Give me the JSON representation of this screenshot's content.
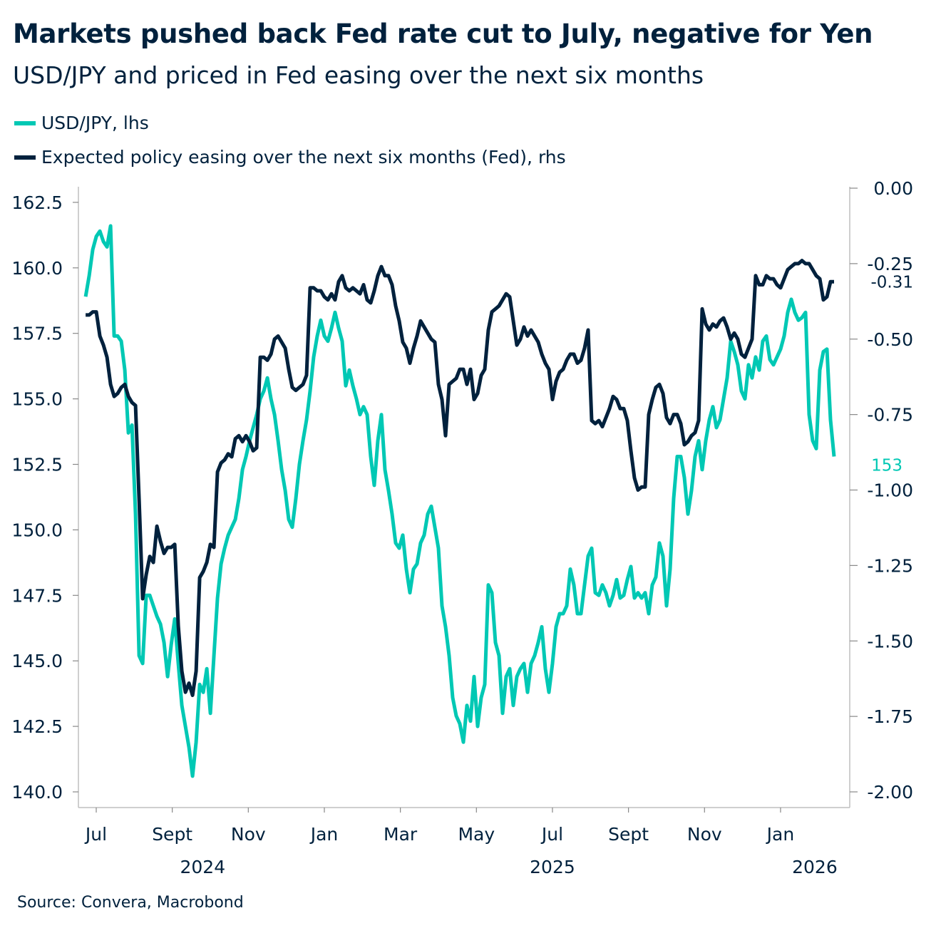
{
  "chart_data": {
    "type": "line",
    "title": "Markets pushed back Fed rate cut to July, negative for Yen",
    "subtitle": "USD/JPY and priced in Fed easing over the next six months",
    "source": "Source: Convera, Macrobond",
    "colors": {
      "usdjpy": "#00c8b4",
      "fed": "#00213d",
      "axis": "#bfbfbf"
    },
    "x_axis": {
      "unit": "months since Jul 2024",
      "range": [
        -0.45,
        19.55
      ],
      "ticks": [
        {
          "m": 0,
          "label": "Jul"
        },
        {
          "m": 2,
          "label": "Sept"
        },
        {
          "m": 4,
          "label": "Nov"
        },
        {
          "m": 6,
          "label": "Jan"
        },
        {
          "m": 8,
          "label": "Mar"
        },
        {
          "m": 10,
          "label": "May"
        },
        {
          "m": 12,
          "label": "Jul"
        },
        {
          "m": 14,
          "label": "Sept"
        },
        {
          "m": 16,
          "label": "Nov"
        },
        {
          "m": 18,
          "label": "Jan"
        }
      ],
      "years": [
        {
          "m": 2.8,
          "label": "2024"
        },
        {
          "m": 12,
          "label": "2025"
        },
        {
          "m": 18.9,
          "label": "2026"
        }
      ]
    },
    "y_left": {
      "label": "lhs",
      "range": [
        139.4,
        163.0
      ],
      "ticks": [
        "140.0",
        "142.5",
        "145.0",
        "147.5",
        "150.0",
        "152.5",
        "155.0",
        "157.5",
        "160.0",
        "162.5"
      ]
    },
    "y_right": {
      "label": "rhs",
      "range": [
        -2.05,
        0.0
      ],
      "ticks": [
        "0.00",
        "-0.25",
        "-0.50",
        "-0.75",
        "-1.00",
        "-1.25",
        "-1.50",
        "-1.75",
        "-2.00"
      ]
    },
    "x_start_month": -0.28,
    "x_step_month": 0.09375,
    "series": [
      {
        "name": "USD/JPY, lhs",
        "axis": "left",
        "last_label": "153",
        "values": [
          158.9,
          159.7,
          160.7,
          161.2,
          161.4,
          161.0,
          160.8,
          161.6,
          157.4,
          157.4,
          157.2,
          156.1,
          153.7,
          154.0,
          150.6,
          145.2,
          144.9,
          147.5,
          147.5,
          147.1,
          146.7,
          146.4,
          145.7,
          144.4,
          145.6,
          146.6,
          144.9,
          143.3,
          142.5,
          141.7,
          140.6,
          141.9,
          144.1,
          143.8,
          144.7,
          143.0,
          145.2,
          147.4,
          148.7,
          149.3,
          149.8,
          150.1,
          150.4,
          151.2,
          152.3,
          152.8,
          153.4,
          153.9,
          154.4,
          155.0,
          155.3,
          155.8,
          155.0,
          154.4,
          153.4,
          152.3,
          151.5,
          150.4,
          150.1,
          151.2,
          152.5,
          153.4,
          154.2,
          155.3,
          156.6,
          157.4,
          158.0,
          157.4,
          157.2,
          157.7,
          158.3,
          157.7,
          157.2,
          155.5,
          156.1,
          155.5,
          155.0,
          154.4,
          154.7,
          154.4,
          152.8,
          151.7,
          153.4,
          154.4,
          152.3,
          151.5,
          150.6,
          149.5,
          149.3,
          149.8,
          148.5,
          147.6,
          148.5,
          148.7,
          149.5,
          149.8,
          150.6,
          150.9,
          150.1,
          149.3,
          147.1,
          146.3,
          145.2,
          143.6,
          142.9,
          142.6,
          141.9,
          143.3,
          142.7,
          144.4,
          142.5,
          143.6,
          144.1,
          147.9,
          147.6,
          145.7,
          145.2,
          143.0,
          144.4,
          144.7,
          143.3,
          144.4,
          144.7,
          144.9,
          143.8,
          144.9,
          145.2,
          145.7,
          146.3,
          144.7,
          143.8,
          144.9,
          146.3,
          146.8,
          146.8,
          147.1,
          148.5,
          147.9,
          146.8,
          146.8,
          147.9,
          149.0,
          149.3,
          147.6,
          147.5,
          147.9,
          147.6,
          147.1,
          147.5,
          148.1,
          147.4,
          147.5,
          148.1,
          148.6,
          147.4,
          147.6,
          147.4,
          147.6,
          146.8,
          147.9,
          148.2,
          149.5,
          149.0,
          147.1,
          148.5,
          151.2,
          152.8,
          152.8,
          152.0,
          150.6,
          151.5,
          152.8,
          153.4,
          152.3,
          153.4,
          154.2,
          154.7,
          153.9,
          154.2,
          155.0,
          155.8,
          157.2,
          156.8,
          156.3,
          155.3,
          155.0,
          156.3,
          155.8,
          156.6,
          156.1,
          157.2,
          157.4,
          156.5,
          156.3,
          156.6,
          156.9,
          157.4,
          158.3,
          158.8,
          158.3,
          158.0,
          158.1,
          158.3,
          154.4,
          153.4,
          153.1,
          156.1,
          156.8,
          156.9,
          154.2,
          152.8
        ]
      },
      {
        "name": "Expected policy easing over the next six months (Fed), rhs",
        "axis": "right",
        "last_label": "-0.31",
        "values": [
          -0.42,
          -0.42,
          -0.41,
          -0.41,
          -0.49,
          -0.52,
          -0.56,
          -0.65,
          -0.69,
          -0.68,
          -0.66,
          -0.65,
          -0.69,
          -0.71,
          -0.72,
          -1.03,
          -1.36,
          -1.28,
          -1.22,
          -1.24,
          -1.12,
          -1.17,
          -1.21,
          -1.19,
          -1.19,
          -1.18,
          -1.45,
          -1.6,
          -1.67,
          -1.64,
          -1.68,
          -1.6,
          -1.29,
          -1.27,
          -1.24,
          -1.18,
          -1.19,
          -0.94,
          -0.91,
          -0.9,
          -0.88,
          -0.89,
          -0.83,
          -0.82,
          -0.84,
          -0.82,
          -0.84,
          -0.87,
          -0.86,
          -0.56,
          -0.56,
          -0.57,
          -0.55,
          -0.5,
          -0.49,
          -0.51,
          -0.53,
          -0.6,
          -0.66,
          -0.67,
          -0.66,
          -0.65,
          -0.62,
          -0.33,
          -0.33,
          -0.34,
          -0.34,
          -0.36,
          -0.37,
          -0.35,
          -0.37,
          -0.31,
          -0.29,
          -0.33,
          -0.34,
          -0.33,
          -0.34,
          -0.35,
          -0.32,
          -0.37,
          -0.38,
          -0.34,
          -0.29,
          -0.26,
          -0.29,
          -0.29,
          -0.32,
          -0.39,
          -0.44,
          -0.51,
          -0.53,
          -0.58,
          -0.53,
          -0.49,
          -0.44,
          -0.46,
          -0.48,
          -0.5,
          -0.51,
          -0.65,
          -0.7,
          -0.82,
          -0.65,
          -0.64,
          -0.63,
          -0.6,
          -0.6,
          -0.65,
          -0.6,
          -0.7,
          -0.68,
          -0.62,
          -0.6,
          -0.47,
          -0.41,
          -0.4,
          -0.39,
          -0.37,
          -0.35,
          -0.36,
          -0.44,
          -0.52,
          -0.5,
          -0.46,
          -0.49,
          -0.47,
          -0.49,
          -0.51,
          -0.55,
          -0.58,
          -0.6,
          -0.7,
          -0.64,
          -0.61,
          -0.6,
          -0.57,
          -0.55,
          -0.55,
          -0.58,
          -0.57,
          -0.53,
          -0.47,
          -0.77,
          -0.78,
          -0.77,
          -0.79,
          -0.76,
          -0.73,
          -0.69,
          -0.7,
          -0.73,
          -0.73,
          -0.77,
          -0.87,
          -0.96,
          -1.0,
          -0.99,
          -0.99,
          -0.75,
          -0.7,
          -0.66,
          -0.65,
          -0.68,
          -0.76,
          -0.78,
          -0.75,
          -0.75,
          -0.78,
          -0.85,
          -0.84,
          -0.82,
          -0.81,
          -0.77,
          -0.4,
          -0.45,
          -0.47,
          -0.45,
          -0.46,
          -0.44,
          -0.43,
          -0.46,
          -0.5,
          -0.48,
          -0.5,
          -0.55,
          -0.56,
          -0.53,
          -0.5,
          -0.29,
          -0.32,
          -0.32,
          -0.29,
          -0.3,
          -0.3,
          -0.32,
          -0.33,
          -0.3,
          -0.27,
          -0.26,
          -0.25,
          -0.25,
          -0.24,
          -0.25,
          -0.25,
          -0.27,
          -0.29,
          -0.3,
          -0.37,
          -0.36,
          -0.31,
          -0.31
        ]
      }
    ]
  }
}
